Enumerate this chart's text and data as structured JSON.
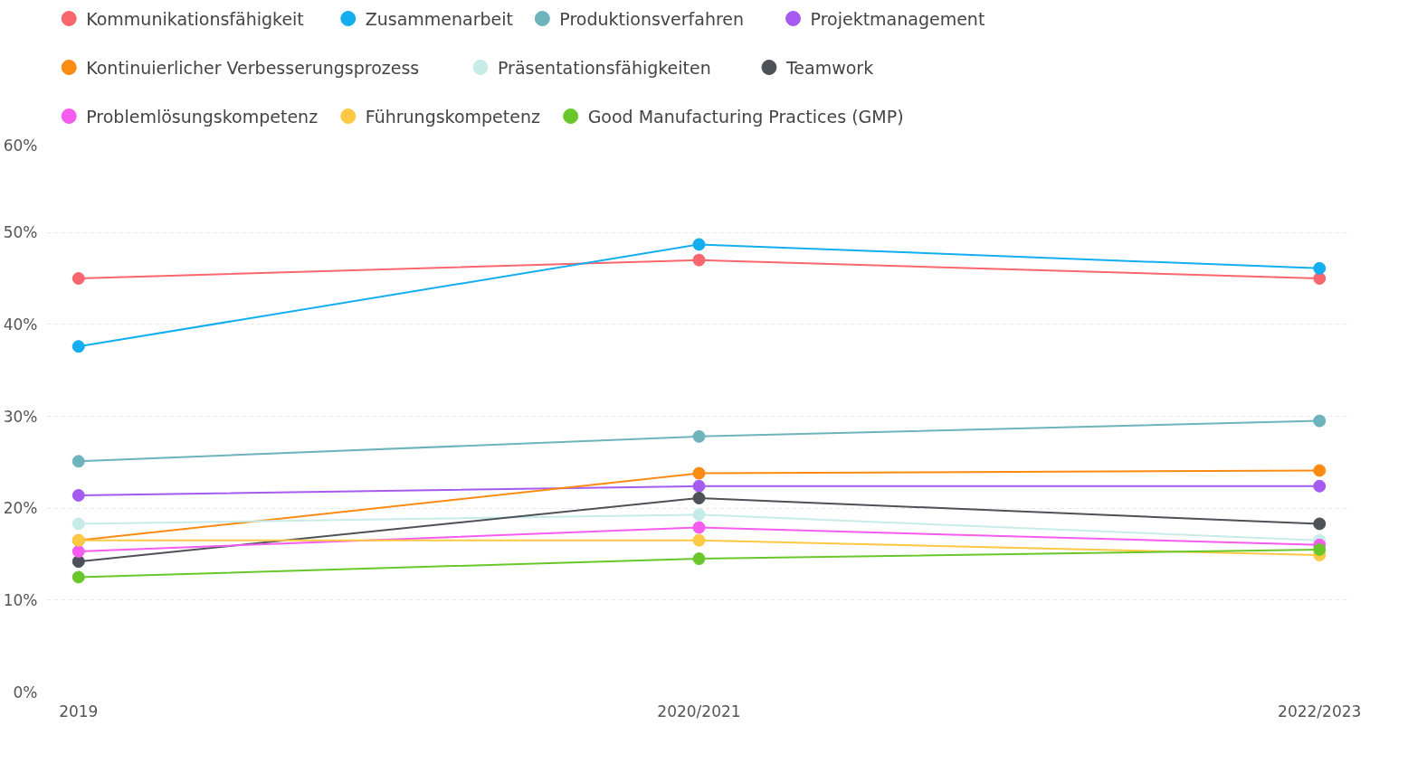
{
  "chart_data": {
    "type": "line",
    "categories": [
      "2019",
      "2020/2021",
      "2022/2023"
    ],
    "ylim": [
      0,
      60
    ],
    "yticks": [
      {
        "value": 0,
        "label": "0%"
      },
      {
        "value": 10,
        "label": "10%"
      },
      {
        "value": 20,
        "label": "20%"
      },
      {
        "value": 30,
        "label": "30%"
      },
      {
        "value": 40,
        "label": "40%"
      },
      {
        "value": 50,
        "label": "50%"
      },
      {
        "value": 60,
        "label": "60%"
      }
    ],
    "grid": "y",
    "legend": "top",
    "marker": "circle",
    "line_style": "solid",
    "series": [
      {
        "name": "Kommunikationsfähigkeit",
        "color": "#f7676d",
        "values": [
          45.0,
          47.0,
          45.0
        ]
      },
      {
        "name": "Zusammenarbeit",
        "color": "#13aeef",
        "values": [
          37.6,
          48.7,
          46.1
        ]
      },
      {
        "name": "Produktionsverfahren",
        "color": "#6fb3bd",
        "values": [
          25.1,
          27.8,
          29.5
        ]
      },
      {
        "name": "Projektmanagement",
        "color": "#a65bf0",
        "values": [
          21.4,
          22.4,
          22.4
        ]
      },
      {
        "name": "Kontinuierlicher Verbesserungsprozess",
        "color": "#fb8b12",
        "values": [
          16.5,
          23.8,
          24.1
        ]
      },
      {
        "name": "Präsentationsfähigkeiten",
        "color": "#c7ece8",
        "values": [
          18.3,
          19.3,
          16.5
        ]
      },
      {
        "name": "Teamwork",
        "color": "#4c5257",
        "values": [
          14.2,
          21.1,
          18.3
        ]
      },
      {
        "name": "Problemlösungskompetenz",
        "color": "#f55cf0",
        "values": [
          15.3,
          17.9,
          16.0
        ]
      },
      {
        "name": "Führungskompetenz",
        "color": "#fdc843",
        "values": [
          16.5,
          16.5,
          14.9
        ]
      },
      {
        "name": "Good Manufacturing Practices (GMP)",
        "color": "#6ac72b",
        "values": [
          12.5,
          14.5,
          15.5
        ]
      }
    ]
  }
}
